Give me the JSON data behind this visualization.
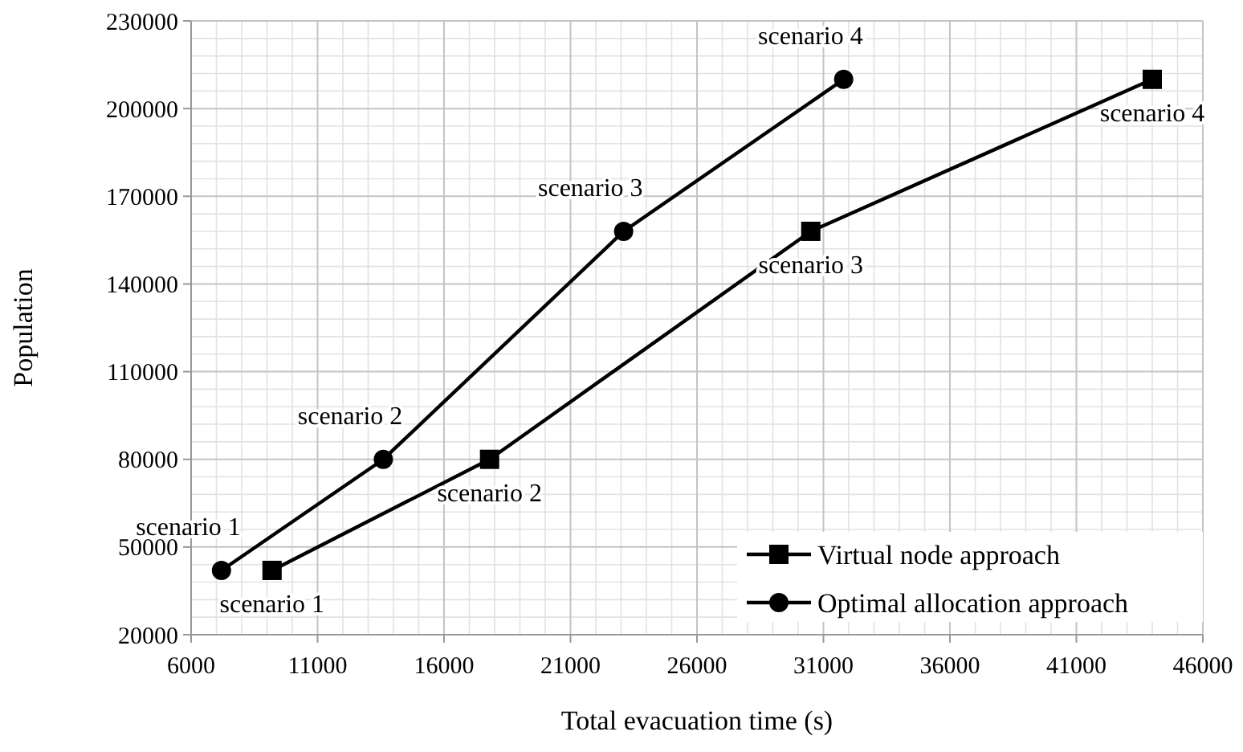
{
  "chart_data": {
    "type": "line",
    "xlabel": "Total evacuation time (s)",
    "ylabel": "Population",
    "series": [
      {
        "name": "Virtual node approach",
        "color": "#000000",
        "marker": "square",
        "x": [
          9200,
          17800,
          30500,
          44000
        ],
        "values": [
          42000,
          80000,
          158000,
          210000
        ]
      },
      {
        "name": "Optimal allocation approach",
        "color": "#000000",
        "marker": "circle",
        "x": [
          7200,
          13600,
          23100,
          31800
        ],
        "values": [
          42000,
          80000,
          158000,
          210000
        ]
      }
    ],
    "annotations": [
      {
        "text": "scenario 1",
        "x": 9200,
        "y": 42000
      },
      {
        "text": "scenario 2",
        "x": 17800,
        "y": 80000
      },
      {
        "text": "scenario 3",
        "x": 30500,
        "y": 158000
      },
      {
        "text": "scenario 4",
        "x": 44000,
        "y": 210000
      },
      {
        "text": "scenario 1",
        "x": 7200,
        "y": 42000
      },
      {
        "text": "scenario 2",
        "x": 13600,
        "y": 80000
      },
      {
        "text": "scenario 3",
        "x": 23100,
        "y": 158000
      },
      {
        "text": "scenario 4",
        "x": 31800,
        "y": 210000
      }
    ],
    "xlim": [
      6000,
      46000
    ],
    "xticks": [
      6000,
      11000,
      16000,
      21000,
      26000,
      31000,
      36000,
      41000,
      46000
    ],
    "ylim": [
      20000,
      230000
    ],
    "yticks": [
      20000,
      50000,
      80000,
      110000,
      140000,
      170000,
      200000,
      230000
    ],
    "grid": true,
    "legend": "bottom right",
    "line_style": "solid"
  }
}
